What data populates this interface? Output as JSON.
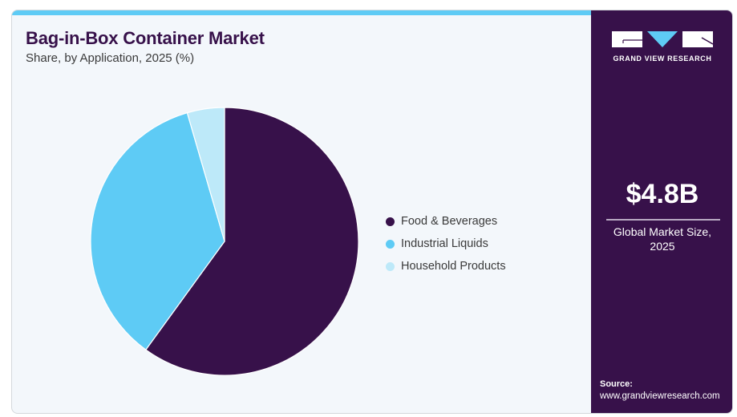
{
  "header": {
    "title": "Bag-in-Box Container Market",
    "subtitle": "Share, by Application, 2025 (%)"
  },
  "brand": {
    "logo_text": "GRAND VIEW RESEARCH",
    "colors": {
      "primary": "#37114a",
      "accent": "#5ecbf5",
      "light": "#bde9f9"
    }
  },
  "sidebar": {
    "market_value": "$4.8B",
    "market_label_line1": "Global Market Size,",
    "market_label_line2": "2025",
    "source_label": "Source:",
    "source_url": "www.grandviewresearch.com"
  },
  "chart_data": {
    "type": "pie",
    "title": "Bag-in-Box Container Market",
    "subtitle": "Share, by Application, 2025 (%)",
    "categories": [
      "Food & Beverages",
      "Industrial Liquids",
      "Household Products"
    ],
    "values": [
      60.0,
      35.5,
      4.5
    ],
    "colors": [
      "#37114a",
      "#5ecbf5",
      "#bde9f9"
    ],
    "start_angle": "12 o'clock",
    "direction": "clockwise",
    "legend_position": "right"
  }
}
